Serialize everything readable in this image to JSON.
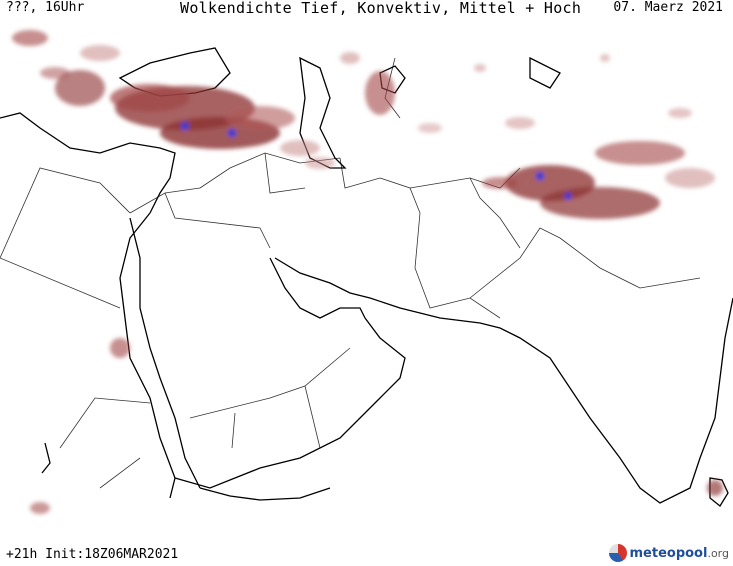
{
  "header": {
    "left": "???, 16Uhr",
    "title": "Wolkendichte  Tief, Konvektiv, Mittel + Hoch",
    "date": "07. Maerz 2021"
  },
  "footer": {
    "init": "+21h Init:18Z06MAR2021"
  },
  "logo": {
    "brand": "meteopool",
    "domain": ".org"
  },
  "colors": {
    "cloud_dense": "#8b2f2f",
    "cloud_light": "#c98a8a",
    "cloud_core": "#3b3bd6",
    "coastline": "#000000",
    "border": "#333333"
  }
}
